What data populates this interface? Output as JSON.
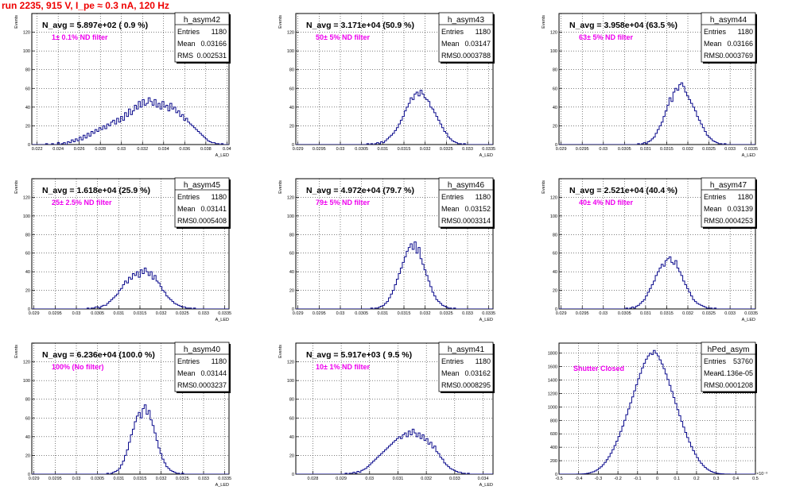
{
  "title": "run 2235,   915 V, I_pe ≈ 0.3 nA, 120 Hz",
  "chart_data": [
    {
      "type": "histogram",
      "name": "h_asym42",
      "stats": {
        "entries": "1180",
        "mean": "0.03166",
        "rms": "0.002531"
      },
      "navg": "N_avg = 5.897e+02 ( 0.9 %)",
      "filter": "1± 0.1% ND filter",
      "xlabel": "A_LED",
      "ylabel": "Events",
      "xlim": [
        0.0215,
        0.0402
      ],
      "ylim": [
        0,
        140
      ],
      "xticks": [
        0.022,
        0.024,
        0.026,
        0.028,
        0.03,
        0.032,
        0.034,
        0.036,
        0.038,
        0.04
      ],
      "xtick_labels": [
        "0.022",
        "0.024",
        "0.026",
        "0.028",
        "0.03",
        "0.032",
        "0.034",
        "0.036",
        "0.038",
        "0.04"
      ],
      "yticks": [
        0,
        20,
        40,
        60,
        80,
        100,
        120
      ],
      "bin_lo": 0.0215,
      "bin_width": 0.000187,
      "values": [
        0,
        0,
        0,
        0,
        0,
        0,
        0,
        1,
        0,
        0,
        1,
        0,
        0,
        2,
        0,
        1,
        2,
        0,
        3,
        2,
        5,
        3,
        6,
        4,
        8,
        5,
        10,
        7,
        12,
        9,
        14,
        12,
        16,
        14,
        18,
        16,
        20,
        17,
        22,
        20,
        24,
        26,
        22,
        28,
        24,
        30,
        26,
        34,
        30,
        38,
        32,
        36,
        42,
        38,
        46,
        40,
        48,
        42,
        44,
        50,
        46,
        42,
        48,
        40,
        44,
        38,
        46,
        40,
        42,
        36,
        44,
        38,
        40,
        34,
        36,
        30,
        32,
        26,
        28,
        24,
        22,
        20,
        18,
        16,
        14,
        12,
        10,
        8,
        6,
        4,
        3,
        2,
        2,
        1,
        1,
        0,
        1,
        0,
        0,
        0
      ]
    },
    {
      "type": "histogram",
      "name": "h_asym43",
      "stats": {
        "entries": "1180",
        "mean": "0.03147",
        "rms": "0.0003788"
      },
      "navg": "N_avg = 3.171e+04 (50.9 %)",
      "filter": "50± 5% ND filter",
      "xlabel": "A_LED",
      "ylabel": "Events",
      "xlim": [
        0.02895,
        0.0336
      ],
      "ylim": [
        0,
        140
      ],
      "xticks": [
        0.029,
        0.0295,
        0.03,
        0.0305,
        0.031,
        0.0315,
        0.032,
        0.0325,
        0.033,
        0.0335
      ],
      "xtick_labels": [
        "0.029",
        "0.0295",
        "0.03",
        "0.0305",
        "0.031",
        "0.0315",
        "0.032",
        "0.0325",
        "0.033",
        "0.0335"
      ],
      "yticks": [
        0,
        20,
        40,
        60,
        80,
        100,
        120
      ],
      "bin_lo": 0.02895,
      "bin_width": 4.65e-05,
      "values": [
        0,
        0,
        0,
        0,
        0,
        0,
        0,
        0,
        0,
        0,
        0,
        0,
        0,
        0,
        0,
        0,
        0,
        0,
        0,
        0,
        0,
        0,
        0,
        0,
        0,
        0,
        0,
        0,
        0,
        0,
        0,
        0,
        0,
        0,
        0,
        0,
        1,
        0,
        1,
        0,
        1,
        2,
        1,
        3,
        2,
        4,
        6,
        8,
        10,
        12,
        15,
        18,
        22,
        26,
        30,
        36,
        40,
        44,
        50,
        48,
        54,
        56,
        52,
        58,
        54,
        50,
        48,
        46,
        40,
        38,
        34,
        30,
        26,
        22,
        18,
        14,
        12,
        8,
        6,
        4,
        3,
        2,
        1,
        1,
        0,
        1,
        0,
        0,
        0,
        0,
        0,
        0,
        0,
        0,
        0,
        0,
        0,
        0,
        0,
        0
      ]
    },
    {
      "type": "histogram",
      "name": "h_asym44",
      "stats": {
        "entries": "1180",
        "mean": "0.03166",
        "rms": "0.0003769"
      },
      "navg": "N_avg = 3.958e+04 (63.5 %)",
      "filter": "63± 5% ND filter",
      "xlabel": "A_LED",
      "ylabel": "Events",
      "xlim": [
        0.02895,
        0.0336
      ],
      "ylim": [
        0,
        140
      ],
      "xticks": [
        0.029,
        0.0295,
        0.03,
        0.0305,
        0.031,
        0.0315,
        0.032,
        0.0325,
        0.033,
        0.0335
      ],
      "xtick_labels": [
        "0.029",
        "0.0295",
        "0.03",
        "0.0305",
        "0.031",
        "0.0315",
        "0.032",
        "0.0325",
        "0.033",
        "0.0335"
      ],
      "yticks": [
        0,
        20,
        40,
        60,
        80,
        100,
        120
      ],
      "bin_lo": 0.02895,
      "bin_width": 4.65e-05,
      "values": [
        0,
        0,
        0,
        0,
        0,
        0,
        0,
        0,
        0,
        0,
        0,
        0,
        0,
        0,
        0,
        0,
        0,
        0,
        0,
        0,
        0,
        0,
        0,
        0,
        0,
        0,
        0,
        0,
        0,
        0,
        0,
        0,
        0,
        0,
        0,
        0,
        0,
        0,
        0,
        0,
        1,
        0,
        1,
        2,
        1,
        3,
        4,
        6,
        8,
        12,
        16,
        20,
        24,
        30,
        36,
        42,
        50,
        46,
        56,
        60,
        58,
        64,
        66,
        62,
        56,
        52,
        48,
        44,
        40,
        36,
        30,
        26,
        22,
        18,
        14,
        10,
        8,
        6,
        4,
        3,
        2,
        1,
        1,
        0,
        1,
        0,
        0,
        0,
        0,
        0,
        0,
        0,
        0,
        0,
        0,
        0,
        0,
        0,
        0,
        0
      ]
    },
    {
      "type": "histogram",
      "name": "h_asym45",
      "stats": {
        "entries": "1180",
        "mean": "0.03141",
        "rms": "0.0005408"
      },
      "navg": "N_avg = 1.618e+04 (25.9 %)",
      "filter": "25± 2.5% ND filter",
      "xlabel": "A_LED",
      "ylabel": "Events",
      "xlim": [
        0.02895,
        0.0336
      ],
      "ylim": [
        0,
        140
      ],
      "xticks": [
        0.029,
        0.0295,
        0.03,
        0.0305,
        0.031,
        0.0315,
        0.032,
        0.0325,
        0.033,
        0.0335
      ],
      "xtick_labels": [
        "0.029",
        "0.0295",
        "0.03",
        "0.0305",
        "0.031",
        "0.0315",
        "0.032",
        "0.0325",
        "0.033",
        "0.0335"
      ],
      "yticks": [
        0,
        20,
        40,
        60,
        80,
        100,
        120
      ],
      "bin_lo": 0.02895,
      "bin_width": 4.65e-05,
      "values": [
        0,
        0,
        0,
        0,
        0,
        0,
        0,
        0,
        0,
        0,
        0,
        0,
        0,
        0,
        0,
        0,
        0,
        0,
        0,
        0,
        0,
        0,
        0,
        0,
        0,
        0,
        0,
        0,
        1,
        0,
        1,
        1,
        2,
        2,
        1,
        3,
        4,
        4,
        6,
        8,
        10,
        12,
        14,
        16,
        20,
        22,
        26,
        30,
        28,
        34,
        32,
        38,
        36,
        40,
        34,
        42,
        38,
        44,
        40,
        36,
        40,
        32,
        36,
        30,
        28,
        24,
        20,
        18,
        14,
        12,
        10,
        8,
        6,
        5,
        4,
        3,
        2,
        2,
        1,
        1,
        1,
        0,
        1,
        0,
        0,
        0,
        0,
        0,
        0,
        0,
        0,
        0,
        0,
        0,
        0,
        0,
        0,
        0,
        0,
        0
      ]
    },
    {
      "type": "histogram",
      "name": "h_asym46",
      "stats": {
        "entries": "1180",
        "mean": "0.03152",
        "rms": "0.0003314"
      },
      "navg": "N_avg = 4.972e+04 (79.7 %)",
      "filter": "79± 5% ND filter",
      "xlabel": "A_LED",
      "ylabel": "Events",
      "xlim": [
        0.02895,
        0.0336
      ],
      "ylim": [
        0,
        140
      ],
      "xticks": [
        0.029,
        0.0295,
        0.03,
        0.0305,
        0.031,
        0.0315,
        0.032,
        0.0325,
        0.033,
        0.0335
      ],
      "xtick_labels": [
        "0.029",
        "0.0295",
        "0.03",
        "0.0305",
        "0.031",
        "0.0315",
        "0.032",
        "0.0325",
        "0.033",
        "0.0335"
      ],
      "yticks": [
        0,
        20,
        40,
        60,
        80,
        100,
        120
      ],
      "bin_lo": 0.02895,
      "bin_width": 4.65e-05,
      "values": [
        0,
        0,
        0,
        0,
        0,
        0,
        0,
        0,
        0,
        0,
        0,
        0,
        0,
        0,
        0,
        0,
        0,
        0,
        0,
        0,
        0,
        0,
        0,
        0,
        0,
        0,
        0,
        0,
        0,
        0,
        0,
        0,
        0,
        0,
        0,
        0,
        0,
        0,
        1,
        0,
        1,
        1,
        2,
        3,
        4,
        6,
        8,
        12,
        16,
        20,
        26,
        32,
        38,
        44,
        50,
        56,
        62,
        66,
        70,
        64,
        72,
        60,
        66,
        54,
        48,
        42,
        36,
        30,
        24,
        18,
        14,
        10,
        8,
        6,
        4,
        3,
        2,
        1,
        1,
        0,
        1,
        0,
        0,
        0,
        0,
        0,
        0,
        0,
        0,
        0,
        0,
        0,
        0,
        0,
        0,
        0,
        0,
        0,
        0,
        0
      ]
    },
    {
      "type": "histogram",
      "name": "h_asym47",
      "stats": {
        "entries": "1180",
        "mean": "0.03139",
        "rms": "0.0004253"
      },
      "navg": "N_avg = 2.521e+04 (40.4 %)",
      "filter": "40± 4% ND filter",
      "xlabel": "A_LED",
      "ylabel": "Events",
      "xlim": [
        0.02895,
        0.0336
      ],
      "ylim": [
        0,
        140
      ],
      "xticks": [
        0.029,
        0.0295,
        0.03,
        0.0305,
        0.031,
        0.0315,
        0.032,
        0.0325,
        0.033,
        0.0335
      ],
      "xtick_labels": [
        "0.029",
        "0.0295",
        "0.03",
        "0.0305",
        "0.031",
        "0.0315",
        "0.032",
        "0.0325",
        "0.033",
        "0.0335"
      ],
      "yticks": [
        0,
        20,
        40,
        60,
        80,
        100,
        120
      ],
      "bin_lo": 0.02895,
      "bin_width": 4.65e-05,
      "values": [
        0,
        0,
        0,
        0,
        0,
        0,
        0,
        0,
        0,
        0,
        0,
        0,
        0,
        0,
        0,
        0,
        0,
        0,
        0,
        0,
        0,
        0,
        0,
        0,
        0,
        0,
        0,
        0,
        0,
        0,
        0,
        0,
        0,
        0,
        1,
        0,
        1,
        2,
        1,
        3,
        4,
        6,
        8,
        10,
        14,
        18,
        22,
        26,
        30,
        36,
        40,
        44,
        48,
        46,
        52,
        54,
        56,
        50,
        48,
        52,
        44,
        40,
        36,
        30,
        26,
        22,
        18,
        14,
        10,
        8,
        6,
        5,
        4,
        3,
        2,
        1,
        1,
        1,
        0,
        1,
        0,
        0,
        0,
        0,
        0,
        0,
        0,
        0,
        0,
        0,
        0,
        0,
        0,
        0,
        0,
        0,
        0,
        0,
        0,
        0
      ]
    },
    {
      "type": "histogram",
      "name": "h_asym40",
      "stats": {
        "entries": "1180",
        "mean": "0.03144",
        "rms": "0.0003237"
      },
      "navg": "N_avg = 6.236e+04 (100.0 %)",
      "filter": "100% (No filter)",
      "xlabel": "A_LED",
      "ylabel": "Events",
      "xlim": [
        0.02895,
        0.0336
      ],
      "ylim": [
        0,
        140
      ],
      "xticks": [
        0.029,
        0.0295,
        0.03,
        0.0305,
        0.031,
        0.0315,
        0.032,
        0.0325,
        0.033,
        0.0335
      ],
      "xtick_labels": [
        "0.029",
        "0.0295",
        "0.03",
        "0.0305",
        "0.031",
        "0.0315",
        "0.032",
        "0.0325",
        "0.033",
        "0.0335"
      ],
      "yticks": [
        0,
        20,
        40,
        60,
        80,
        100,
        120
      ],
      "bin_lo": 0.02895,
      "bin_width": 4.65e-05,
      "values": [
        0,
        0,
        0,
        0,
        0,
        0,
        0,
        0,
        0,
        0,
        0,
        0,
        0,
        0,
        0,
        0,
        0,
        0,
        0,
        0,
        0,
        0,
        0,
        0,
        0,
        0,
        0,
        0,
        0,
        0,
        0,
        0,
        0,
        0,
        0,
        0,
        0,
        0,
        1,
        0,
        1,
        2,
        3,
        4,
        6,
        10,
        14,
        20,
        26,
        34,
        42,
        48,
        56,
        62,
        66,
        60,
        70,
        74,
        64,
        68,
        58,
        52,
        44,
        36,
        28,
        22,
        16,
        12,
        8,
        6,
        4,
        3,
        2,
        1,
        1,
        0,
        1,
        0,
        0,
        0,
        0,
        0,
        0,
        0,
        0,
        0,
        0,
        0,
        0,
        0,
        0,
        0,
        0,
        0,
        0,
        0,
        0,
        0,
        0,
        0
      ]
    },
    {
      "type": "histogram",
      "name": "h_asym41",
      "stats": {
        "entries": "1180",
        "mean": "0.03162",
        "rms": "0.0008295"
      },
      "navg": "N_avg = 5.917e+03 ( 9.5 %)",
      "filter": "10± 1% ND filter",
      "xlabel": "A_LED",
      "ylabel": "Events",
      "xlim": [
        0.0274,
        0.03435
      ],
      "ylim": [
        0,
        140
      ],
      "xticks": [
        0.028,
        0.029,
        0.03,
        0.031,
        0.032,
        0.033,
        0.034
      ],
      "xtick_labels": [
        "0.028",
        "0.029",
        "0.03",
        "0.031",
        "0.032",
        "0.033",
        "0.034"
      ],
      "yticks": [
        0,
        20,
        40,
        60,
        80,
        100,
        120
      ],
      "bin_lo": 0.0274,
      "bin_width": 6.95e-05,
      "values": [
        0,
        0,
        0,
        0,
        0,
        0,
        0,
        0,
        0,
        0,
        0,
        0,
        0,
        0,
        0,
        0,
        0,
        0,
        0,
        0,
        0,
        0,
        0,
        0,
        0,
        1,
        0,
        1,
        1,
        2,
        1,
        3,
        2,
        4,
        5,
        6,
        8,
        10,
        12,
        14,
        16,
        18,
        20,
        22,
        24,
        26,
        28,
        30,
        32,
        34,
        36,
        38,
        40,
        38,
        42,
        44,
        40,
        46,
        42,
        48,
        44,
        40,
        44,
        38,
        42,
        36,
        38,
        32,
        34,
        28,
        30,
        24,
        22,
        18,
        16,
        12,
        10,
        8,
        6,
        5,
        4,
        3,
        2,
        2,
        1,
        1,
        0,
        1,
        0,
        0,
        0,
        0,
        0,
        0,
        0,
        0,
        0,
        0,
        0,
        0
      ]
    },
    {
      "type": "histogram",
      "name": "hPed_asym",
      "stats": {
        "entries": "53760",
        "mean": "-1.136e-05",
        "rms": "0.0001208"
      },
      "navg": "",
      "filter": "Shutter Closed",
      "xlabel": "",
      "ylabel": "",
      "exponent_label": "×10⁻³",
      "xlim": [
        -0.0005,
        0.0005
      ],
      "ylim": [
        0,
        1950
      ],
      "xticks": [
        -0.0005,
        -0.0004,
        -0.0003,
        -0.0002,
        -0.0001,
        0,
        0.0001,
        0.0002,
        0.0003,
        0.0004,
        0.0005
      ],
      "xtick_labels": [
        "-0.5",
        "-0.4",
        "-0.3",
        "-0.2",
        "-0.1",
        "0",
        "0.1",
        "0.2",
        "0.3",
        "0.4",
        "0.5"
      ],
      "yticks": [
        0,
        200,
        400,
        600,
        800,
        1000,
        1200,
        1400,
        1600,
        1800
      ],
      "bin_lo": -0.0005,
      "bin_width": 1e-05,
      "values": [
        0,
        0,
        0,
        0,
        0,
        0,
        0,
        0,
        0,
        1,
        2,
        3,
        5,
        8,
        12,
        18,
        25,
        35,
        48,
        64,
        85,
        110,
        140,
        175,
        215,
        260,
        310,
        365,
        425,
        490,
        560,
        635,
        715,
        800,
        885,
        970,
        1060,
        1150,
        1240,
        1330,
        1420,
        1500,
        1580,
        1650,
        1710,
        1760,
        1800,
        1780,
        1840,
        1800,
        1760,
        1700,
        1640,
        1570,
        1490,
        1410,
        1320,
        1230,
        1140,
        1050,
        960,
        870,
        785,
        700,
        620,
        545,
        475,
        410,
        350,
        295,
        245,
        200,
        162,
        128,
        100,
        76,
        57,
        42,
        30,
        21,
        14,
        9,
        6,
        4,
        2,
        1,
        1,
        0,
        0,
        0,
        0,
        0,
        0,
        0,
        0,
        0,
        0,
        0,
        0,
        0
      ]
    }
  ]
}
